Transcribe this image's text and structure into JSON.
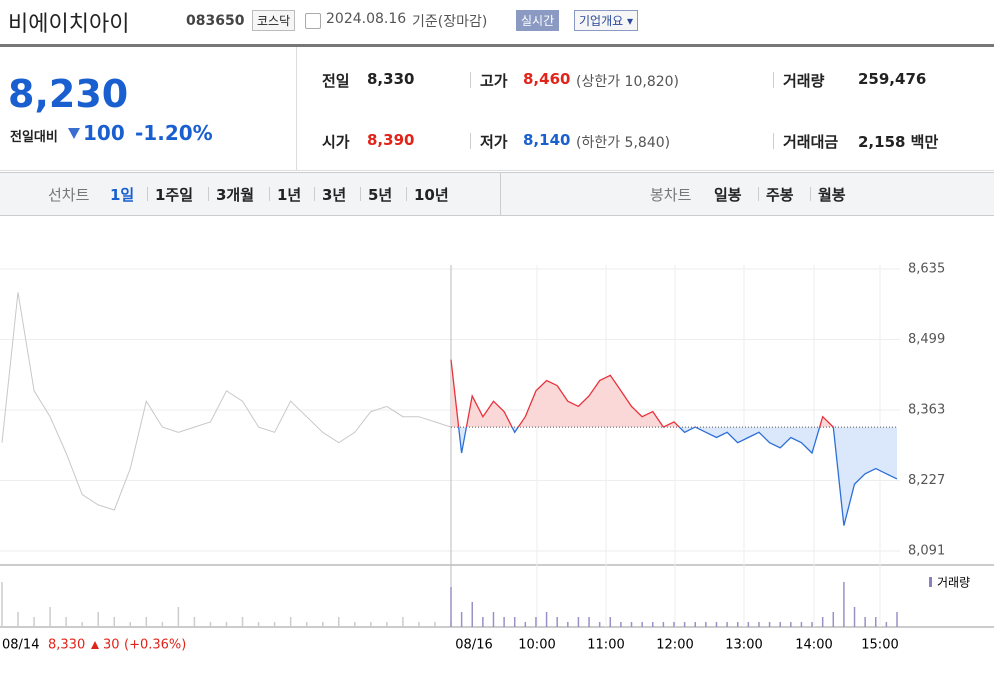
{
  "header": {
    "name": "비에이치아이",
    "code": "083650",
    "market": "코스닥",
    "date": "2024.08.16",
    "basis": "기준(장마감)",
    "realtime": "실시간",
    "overview": "기업개요"
  },
  "quote": {
    "price": "8,230",
    "change_label": "전일대비",
    "change": "100",
    "change_rate": "-1.20%"
  },
  "stats": [
    [
      {
        "label": "전일",
        "value": "8,330"
      },
      {
        "label": "고가",
        "value": "8,460",
        "note": "(상한가 10,820)"
      },
      {
        "label": "거래량",
        "value": "259,476"
      }
    ],
    [
      {
        "label": "시가",
        "value": "8,390"
      },
      {
        "label": "저가",
        "value": "8,140",
        "note": "(하한가 5,840)"
      },
      {
        "label": "거래대금",
        "value": "2,158 백만"
      }
    ]
  ],
  "tabs": {
    "line_label": "선차트",
    "line": [
      "1일",
      "1주일",
      "3개월",
      "1년",
      "3년",
      "5년",
      "10년"
    ],
    "candle_label": "봉차트",
    "candle": [
      "일봉",
      "주봉",
      "월봉"
    ]
  },
  "chart_data": {
    "type": "line",
    "ylim": [
      8091,
      8635
    ],
    "yticks": [
      {
        "value": 8091,
        "label": "8,091"
      },
      {
        "value": 8227,
        "label": "8,227"
      },
      {
        "value": 8363,
        "label": "8,363"
      },
      {
        "value": 8499,
        "label": "8,499"
      },
      {
        "value": 8635,
        "label": "8,635"
      }
    ],
    "xticks": [
      "08/16",
      "10:00",
      "11:00",
      "12:00",
      "13:00",
      "14:00",
      "15:00"
    ],
    "reference": 8330,
    "series": [
      {
        "color": "#c8c8c8",
        "values": [
          8300,
          8590,
          8400,
          8350,
          8280,
          8200,
          8180,
          8170,
          8250,
          8380,
          8330,
          8320,
          8330,
          8340,
          8400,
          8380,
          8330,
          8320,
          8380,
          8350,
          8320,
          8300,
          8320,
          8360,
          8370,
          8350,
          8350,
          8340,
          8330
        ]
      },
      {
        "color": "#e8323c",
        "values": [
          8460,
          8280,
          8390,
          8350,
          8380,
          8360,
          8320,
          8350,
          8400,
          8420,
          8410,
          8380,
          8370,
          8390,
          8420,
          8430,
          8400,
          8370,
          8350,
          8360,
          8330,
          8340,
          8320,
          8330,
          8320,
          8310,
          8320,
          8300,
          8310,
          8320,
          8300,
          8290,
          8310,
          8300,
          8280,
          8350,
          8330,
          8140,
          8220,
          8240,
          8250,
          8240,
          8230
        ]
      }
    ],
    "volume": {
      "name": "거래량",
      "prev": [
        9,
        3,
        2,
        4,
        2,
        1,
        3,
        2,
        1,
        2,
        1,
        4,
        2,
        1,
        1,
        2,
        1,
        1,
        2,
        1,
        1,
        2,
        1,
        1,
        1,
        2,
        1,
        1,
        1
      ],
      "today": [
        8,
        3,
        5,
        2,
        3,
        2,
        2,
        1,
        2,
        3,
        2,
        1,
        2,
        2,
        1,
        2,
        1,
        1,
        1,
        1,
        1,
        1,
        1,
        1,
        1,
        1,
        1,
        1,
        1,
        1,
        1,
        1,
        1,
        1,
        1,
        2,
        3,
        9,
        4,
        2,
        2,
        1,
        3
      ]
    },
    "footer": {
      "date": "08/14",
      "close": "8,330",
      "change": "30",
      "rate": "(+0.36%)"
    }
  }
}
